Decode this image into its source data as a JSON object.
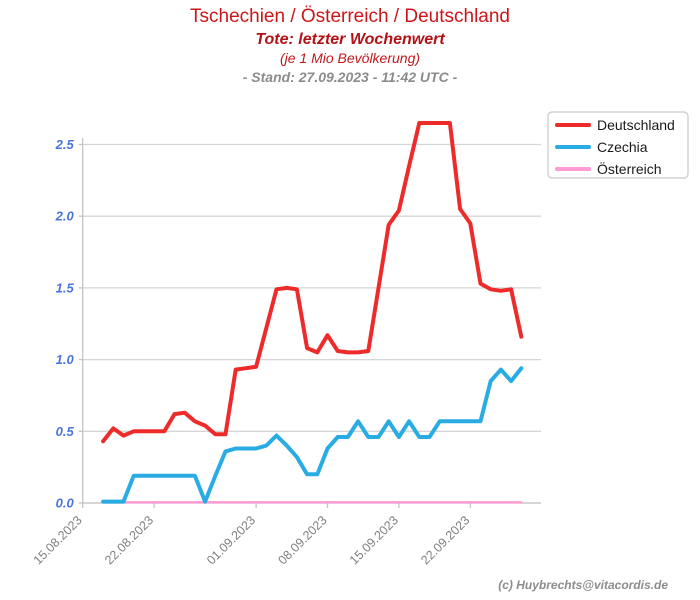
{
  "header": {
    "title": "Tschechien / Österreich / Deutschland",
    "subtitle": "Tote: letzter Wochenwert",
    "subtitle2": "(je 1 Mio Bevölkerung)",
    "stand_line": "- Stand: 27.09.2023 - 11:42 UTC -"
  },
  "footer": {
    "credit": "(c) Huybrechts@vitacordis.de"
  },
  "colors": {
    "title_red": "#cd1619",
    "subtitle_red": "#b21216",
    "subtitle2_red": "#c01a1e",
    "stand_gray": "#8c8c8c",
    "grid_gray": "#d6d6d6",
    "axis_gray": "#c4c4c4",
    "ytick_blue": "#4a74dd",
    "xtick_gray": "#7f7f7f",
    "legend_border": "#c9c9c9",
    "legend_text": "#1a1a1a",
    "deutschland": "#ee2b2b",
    "czechia": "#29ace3",
    "oesterreich": "#ff9ad5"
  },
  "chart_data": {
    "type": "line",
    "title": "Tschechien / Österreich / Deutschland",
    "xlabel": "",
    "ylabel": "",
    "ylim": [
      0,
      2.7
    ],
    "grid": true,
    "legend_position": "top-right",
    "yticks": [
      "0.0",
      "0.5",
      "1.0",
      "1.5",
      "2.0",
      "2.5"
    ],
    "ytick_values": [
      0,
      0.5,
      1.0,
      1.5,
      2.0,
      2.5
    ],
    "xticks": [
      {
        "label": "15.08.2023",
        "day": 0
      },
      {
        "label": "22.08.2023",
        "day": 7
      },
      {
        "label": "01.09.2023",
        "day": 17
      },
      {
        "label": "08.09.2023",
        "day": 24
      },
      {
        "label": "15.09.2023",
        "day": 31
      },
      {
        "label": "22.09.2023",
        "day": 38
      }
    ],
    "first_point_day": 2,
    "dates": [
      "17.08",
      "18.08",
      "19.08",
      "20.08",
      "21.08",
      "22.08",
      "23.08",
      "24.08",
      "25.08",
      "26.08",
      "27.08",
      "28.08",
      "29.08",
      "30.08",
      "31.08",
      "01.09",
      "02.09",
      "03.09",
      "04.09",
      "05.09",
      "06.09",
      "07.09",
      "08.09",
      "09.09",
      "10.09",
      "11.09",
      "12.09",
      "13.09",
      "14.09",
      "15.09",
      "16.09",
      "17.09",
      "18.09",
      "19.09",
      "20.09",
      "21.09",
      "22.09",
      "23.09",
      "24.09",
      "25.09",
      "26.09",
      "27.09"
    ],
    "series": [
      {
        "name": "Deutschland",
        "color_key": "deutschland",
        "values": [
          0.43,
          0.52,
          0.47,
          0.5,
          0.5,
          0.5,
          0.5,
          0.62,
          0.63,
          0.57,
          0.54,
          0.48,
          0.48,
          0.93,
          0.94,
          0.95,
          1.22,
          1.49,
          1.5,
          1.49,
          1.08,
          1.05,
          1.17,
          1.06,
          1.05,
          1.05,
          1.06,
          1.5,
          1.94,
          2.04,
          2.35,
          2.65,
          2.65,
          2.65,
          2.65,
          2.05,
          1.95,
          1.53,
          1.49,
          1.48,
          1.49,
          1.16
        ]
      },
      {
        "name": "Czechia",
        "color_key": "czechia",
        "values": [
          0.01,
          0.01,
          0.01,
          0.19,
          0.19,
          0.19,
          0.19,
          0.19,
          0.19,
          0.19,
          0.01,
          0.19,
          0.36,
          0.38,
          0.38,
          0.38,
          0.4,
          0.47,
          0.4,
          0.32,
          0.2,
          0.2,
          0.38,
          0.46,
          0.46,
          0.57,
          0.46,
          0.46,
          0.57,
          0.46,
          0.57,
          0.46,
          0.46,
          0.57,
          0.57,
          0.57,
          0.57,
          0.57,
          0.85,
          0.93,
          0.85,
          0.94
        ]
      },
      {
        "name": "Österreich",
        "color_key": "oesterreich",
        "values": [
          0,
          0,
          0,
          0,
          0,
          0,
          0,
          0,
          0,
          0,
          0,
          0,
          0,
          0,
          0,
          0,
          0,
          0,
          0,
          0,
          0,
          0,
          0,
          0,
          0,
          0,
          0,
          0,
          0,
          0,
          0,
          0,
          0,
          0,
          0,
          0,
          0,
          0,
          0,
          0,
          0,
          0
        ]
      }
    ]
  }
}
